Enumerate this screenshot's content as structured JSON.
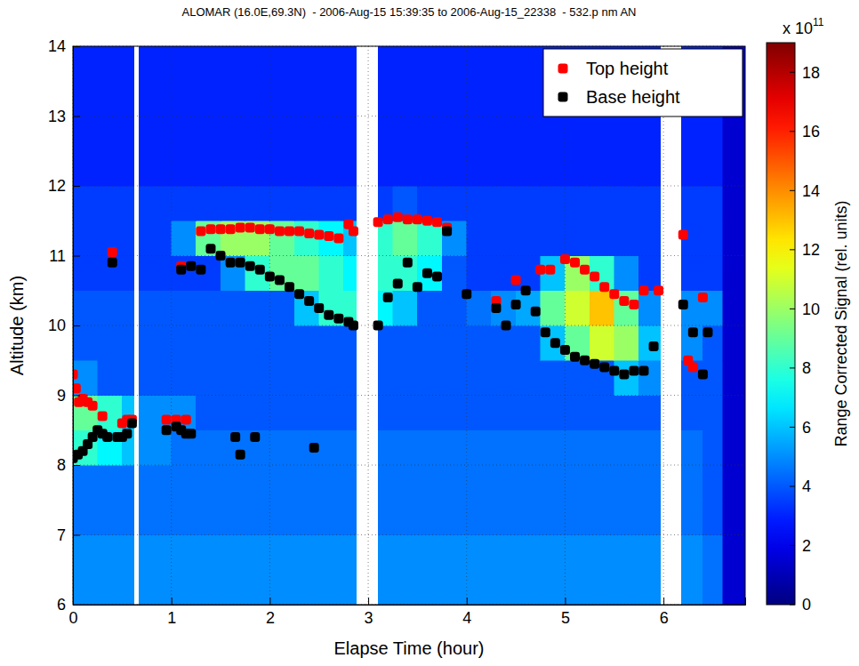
{
  "chart_data": {
    "type": "heatmap",
    "title": "ALOMAR (16.0E,69.3N)  - 2006-Aug-15 15:39:35 to 2006-Aug-15_22338  - 532.p nm AN",
    "x_label": "Elapse Time (hour)",
    "y_label": "Altitude (km)",
    "xlim": [
      0,
      6.83
    ],
    "ylim": [
      6,
      14
    ],
    "xticks": [
      0,
      1,
      2,
      3,
      4,
      5,
      6
    ],
    "yticks": [
      6,
      7,
      8,
      9,
      10,
      11,
      12,
      13,
      14
    ],
    "grid": true,
    "legend": "upper right",
    "heatmap": {
      "x_edges": [
        0,
        0.25,
        0.5,
        0.62,
        0.67,
        1.0,
        1.25,
        1.5,
        1.75,
        2.0,
        2.25,
        2.5,
        2.75,
        2.88,
        3.1,
        3.25,
        3.5,
        3.75,
        4.0,
        4.25,
        4.5,
        4.75,
        5.0,
        5.25,
        5.5,
        5.75,
        5.97,
        6.18,
        6.4,
        6.6,
        6.83
      ],
      "y_edges": [
        6,
        6.5,
        7,
        7.5,
        8,
        8.5,
        9,
        9.5,
        10,
        10.5,
        11,
        11.5,
        12,
        12.5,
        13,
        13.5,
        14
      ],
      "values": [
        [
          5,
          5,
          5,
          null,
          5,
          5,
          5,
          5,
          5,
          5,
          5,
          5,
          5,
          null,
          5,
          5,
          5,
          5,
          5,
          5,
          5,
          5,
          5,
          5,
          5,
          5,
          null,
          5,
          4.5,
          1.5
        ],
        [
          5,
          5,
          5,
          null,
          5,
          5,
          5,
          5,
          5,
          5,
          5,
          5,
          5,
          null,
          5,
          5,
          5,
          5,
          5,
          5,
          5,
          5,
          5,
          5,
          5,
          5,
          null,
          5,
          4.5,
          1.5
        ],
        [
          4.5,
          4.5,
          4.5,
          null,
          4.5,
          4.5,
          4.5,
          4.5,
          4.5,
          4.5,
          4.5,
          4.5,
          4.5,
          null,
          4.5,
          4.5,
          4.5,
          4.5,
          4.5,
          4.5,
          4.5,
          4.5,
          4.5,
          4.5,
          4.5,
          4.5,
          null,
          4.5,
          4,
          1.5
        ],
        [
          4.5,
          4.5,
          4.5,
          null,
          4.5,
          4.5,
          4.5,
          4.5,
          4.5,
          4.5,
          4.5,
          4.5,
          4.5,
          null,
          4.5,
          4.5,
          4.5,
          4.5,
          4.5,
          4.5,
          4.5,
          4.5,
          4.5,
          4.5,
          4.5,
          4.5,
          null,
          4.5,
          4,
          1.5
        ],
        [
          8,
          7,
          6,
          null,
          5,
          4.5,
          4.5,
          4.5,
          4.5,
          4.5,
          4.5,
          4.5,
          4.5,
          null,
          4.5,
          4.5,
          4.5,
          4.5,
          4.5,
          4.5,
          4.5,
          4.5,
          4.5,
          4.5,
          4.5,
          4.5,
          null,
          4.5,
          4,
          1.5
        ],
        [
          9,
          8,
          6,
          null,
          5,
          5,
          4,
          4,
          4,
          4,
          4,
          4,
          4,
          null,
          4,
          4,
          4,
          4,
          4,
          4,
          4,
          4,
          4,
          4,
          4,
          4,
          null,
          4,
          4,
          1.5
        ],
        [
          5,
          4,
          4,
          null,
          4,
          4,
          4,
          4,
          4,
          4,
          4,
          4,
          4,
          null,
          4,
          4,
          4,
          4,
          4,
          4,
          4,
          4,
          4,
          4,
          6,
          5,
          null,
          4,
          4,
          1.5
        ],
        [
          4,
          4,
          4,
          null,
          4,
          4,
          4,
          4,
          4,
          4,
          4,
          4,
          4,
          null,
          4,
          4,
          4,
          4,
          4,
          4,
          4,
          6,
          9,
          11,
          10,
          6,
          null,
          5,
          4,
          1.5
        ],
        [
          4,
          4,
          4,
          null,
          4,
          4,
          4,
          4,
          4,
          4,
          6,
          8,
          8,
          null,
          7,
          6,
          4,
          4,
          4.5,
          5,
          5.5,
          9,
          11,
          13,
          9,
          5,
          null,
          5,
          5,
          1.5
        ],
        [
          3.5,
          3.5,
          3.5,
          null,
          3.5,
          3.5,
          3.5,
          5,
          8,
          9,
          9,
          8,
          7,
          null,
          8,
          8,
          7,
          4,
          3.5,
          3.5,
          3.5,
          6,
          10,
          8,
          5,
          3.5,
          null,
          3.5,
          3.5,
          1.5
        ],
        [
          3.5,
          3.5,
          3.5,
          null,
          3.5,
          5,
          9,
          10,
          10,
          9,
          8,
          7,
          6,
          null,
          8,
          9,
          8,
          5,
          3.5,
          3.5,
          3.5,
          3.5,
          3.5,
          3.5,
          3.5,
          3.5,
          null,
          3.5,
          3.5,
          1.5
        ],
        [
          3.5,
          3.5,
          3.5,
          null,
          3.5,
          3.5,
          3.5,
          3.5,
          3.5,
          3.5,
          3.5,
          3.5,
          3.5,
          null,
          3.5,
          4,
          3.5,
          3.5,
          3.5,
          3.5,
          3.5,
          3.5,
          3.5,
          3.5,
          3.5,
          3.5,
          null,
          3.5,
          3.5,
          1.5
        ],
        [
          3,
          3,
          3,
          null,
          3,
          3,
          3,
          3,
          3,
          3,
          3,
          3,
          3,
          null,
          3,
          3,
          3,
          3,
          3,
          3,
          3,
          3,
          3,
          3,
          3,
          3,
          null,
          3,
          3,
          1.5
        ],
        [
          3,
          3,
          3,
          null,
          3,
          3,
          3,
          3,
          3,
          3,
          3,
          3,
          3,
          null,
          3,
          3,
          3,
          3,
          3,
          3,
          3,
          3,
          3,
          3,
          3,
          3,
          null,
          3,
          3,
          1.5
        ],
        [
          3,
          3,
          3,
          null,
          3,
          3,
          3,
          3,
          3,
          3,
          3,
          3,
          3,
          null,
          3,
          3,
          3,
          3,
          3,
          3,
          3,
          3,
          3,
          3,
          3,
          3,
          null,
          3,
          3,
          1.5
        ],
        [
          3,
          3,
          3,
          null,
          3,
          3,
          3,
          3,
          3,
          3,
          3,
          3,
          3,
          null,
          3,
          3,
          3,
          3,
          3,
          3,
          3,
          3,
          3,
          3,
          3,
          3,
          null,
          3,
          3,
          1.5
        ]
      ]
    },
    "colorbar": {
      "label": "Range Corrected Signal (rel. units)",
      "multiplier": "x 10",
      "exponent": 11,
      "range": [
        0,
        19
      ],
      "ticks": [
        0,
        2,
        4,
        6,
        8,
        10,
        12,
        14,
        16,
        18
      ]
    },
    "series": [
      {
        "name": "Top height",
        "color": "#ff0000",
        "marker": "square",
        "x": [
          0.0,
          0.03,
          0.06,
          0.1,
          0.15,
          0.2,
          0.3,
          0.4,
          0.5,
          0.55,
          0.6,
          0.95,
          1.05,
          1.1,
          1.15,
          1.3,
          1.4,
          1.5,
          1.6,
          1.7,
          1.8,
          1.9,
          2.0,
          2.1,
          2.2,
          2.3,
          2.4,
          2.5,
          2.6,
          2.7,
          2.8,
          2.85,
          3.1,
          3.2,
          3.3,
          3.4,
          3.5,
          3.6,
          3.7,
          3.8,
          4.3,
          4.5,
          4.75,
          4.85,
          5.0,
          5.1,
          5.2,
          5.3,
          5.4,
          5.5,
          5.6,
          5.7,
          5.8,
          5.95,
          6.2,
          6.25,
          6.3,
          6.4
        ],
        "values": [
          9.3,
          9.1,
          8.9,
          8.95,
          8.9,
          8.85,
          8.7,
          11.05,
          8.6,
          8.65,
          8.65,
          8.65,
          8.65,
          10.85,
          8.65,
          11.35,
          11.38,
          11.38,
          11.38,
          11.4,
          11.4,
          11.38,
          11.38,
          11.35,
          11.35,
          11.35,
          11.32,
          11.3,
          11.28,
          11.25,
          11.45,
          11.35,
          11.48,
          11.52,
          11.55,
          11.52,
          11.52,
          11.5,
          11.48,
          11.4,
          10.35,
          10.65,
          10.8,
          10.8,
          10.95,
          10.9,
          10.8,
          10.7,
          10.55,
          10.45,
          10.35,
          10.3,
          10.5,
          10.5,
          11.3,
          9.5,
          9.4,
          10.4
        ]
      },
      {
        "name": "Base height",
        "color": "#000000",
        "marker": "square",
        "x": [
          0.0,
          0.05,
          0.1,
          0.15,
          0.2,
          0.25,
          0.3,
          0.35,
          0.4,
          0.45,
          0.5,
          0.55,
          0.6,
          0.95,
          1.05,
          1.1,
          1.15,
          1.2,
          1.1,
          1.2,
          1.3,
          1.4,
          1.5,
          1.6,
          1.7,
          1.8,
          1.9,
          2.0,
          2.1,
          2.2,
          2.3,
          2.4,
          2.5,
          2.6,
          2.7,
          2.8,
          2.85,
          1.65,
          1.7,
          1.85,
          2.45,
          3.1,
          3.2,
          3.3,
          3.4,
          3.5,
          3.6,
          3.7,
          3.8,
          4.0,
          4.3,
          4.4,
          4.5,
          4.6,
          4.7,
          4.8,
          4.9,
          5.0,
          5.1,
          5.2,
          5.3,
          5.4,
          5.5,
          5.6,
          5.7,
          5.8,
          5.9,
          6.2,
          6.3,
          6.4,
          6.45
        ],
        "values": [
          8.1,
          8.15,
          8.2,
          8.3,
          8.4,
          8.5,
          8.45,
          8.4,
          10.9,
          8.4,
          8.4,
          8.45,
          8.6,
          8.5,
          8.55,
          8.5,
          8.45,
          8.45,
          10.8,
          10.85,
          10.8,
          11.1,
          11.0,
          10.9,
          10.9,
          10.85,
          10.8,
          10.7,
          10.65,
          10.55,
          10.45,
          10.35,
          10.25,
          10.15,
          10.1,
          10.05,
          10.0,
          8.4,
          8.15,
          8.4,
          8.25,
          10.0,
          10.4,
          10.6,
          10.9,
          10.55,
          10.75,
          10.7,
          11.35,
          10.45,
          10.25,
          10.0,
          10.3,
          10.5,
          10.2,
          9.9,
          9.75,
          9.65,
          9.55,
          9.5,
          9.45,
          9.4,
          9.35,
          9.3,
          9.35,
          9.35,
          9.7,
          10.3,
          9.9,
          9.3,
          9.9
        ]
      }
    ]
  }
}
